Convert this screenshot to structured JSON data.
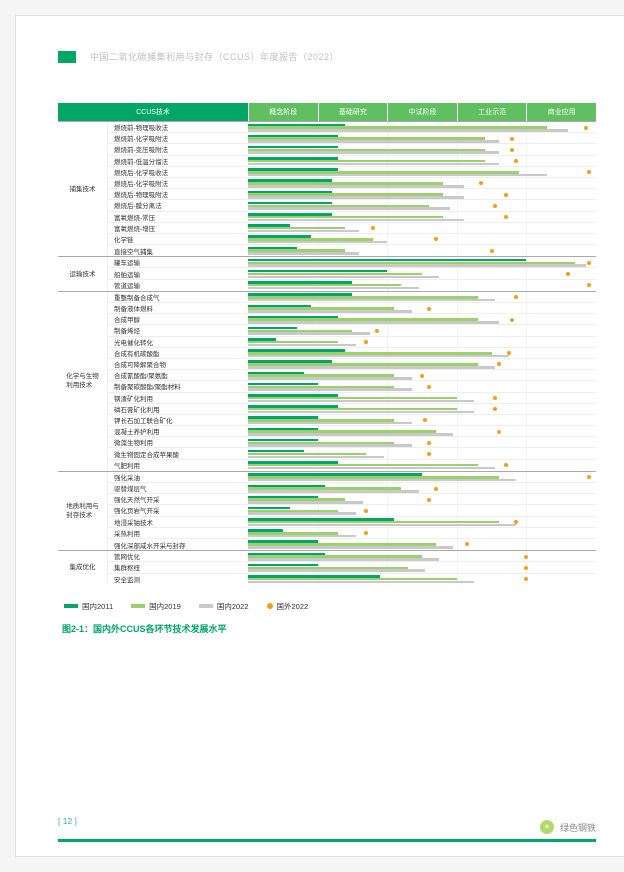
{
  "header": "中国二氧化碳捕集利用与封存（CCUS）年度报告（2022）",
  "columns": {
    "tech": "CCUS技术",
    "stages": [
      "概念阶段",
      "基础研究",
      "中试阶段",
      "工业示范",
      "商业应用"
    ]
  },
  "scale": 5,
  "groups": [
    {
      "name": "捕集技术",
      "rows": [
        {
          "n": "燃烧前-物理吸收法",
          "a": 1.4,
          "b": 4.3,
          "c": 4.6,
          "d": 4.85
        },
        {
          "n": "燃烧前-化学吸附法",
          "a": 1.3,
          "b": 3.4,
          "c": 3.6,
          "d": 3.8
        },
        {
          "n": "燃烧前-变压吸附法",
          "a": 1.3,
          "b": 3.4,
          "c": 3.6,
          "d": 3.8
        },
        {
          "n": "燃烧前-低温分馏法",
          "a": 1.3,
          "b": 3.4,
          "c": 3.6,
          "d": 3.85
        },
        {
          "n": "燃烧后-化学吸收法",
          "a": 1.3,
          "b": 3.9,
          "c": 4.3,
          "d": 4.9
        },
        {
          "n": "燃烧后-化学吸附法",
          "a": 1.2,
          "b": 2.8,
          "c": 3.1,
          "d": 3.35
        },
        {
          "n": "燃烧后-物理吸附法",
          "a": 1.2,
          "b": 2.8,
          "c": 3.1,
          "d": 3.7
        },
        {
          "n": "燃烧后-膜分离法",
          "a": 1.2,
          "b": 2.6,
          "c": 2.9,
          "d": 3.55
        },
        {
          "n": "富氧燃烧-常压",
          "a": 1.2,
          "b": 2.8,
          "c": 3.1,
          "d": 3.7
        },
        {
          "n": "富氧燃烧-增压",
          "a": 0.6,
          "b": 1.4,
          "c": 1.6,
          "d": 1.8
        },
        {
          "n": "化学链",
          "a": 0.9,
          "b": 1.8,
          "c": 2.0,
          "d": 2.7
        },
        {
          "n": "直接空气捕集",
          "a": 0.7,
          "b": 1.4,
          "c": 1.6,
          "d": 3.5
        }
      ]
    },
    {
      "name": "运输技术",
      "rows": [
        {
          "n": "罐车运输",
          "a": 4.0,
          "b": 4.7,
          "c": 4.85,
          "d": 4.9
        },
        {
          "n": "船舶运输",
          "a": 2.0,
          "b": 2.5,
          "c": 2.75,
          "d": 4.6
        },
        {
          "n": "管道运输",
          "a": 1.5,
          "b": 2.2,
          "c": 2.45,
          "d": 4.9
        }
      ]
    },
    {
      "name": "化学与生物\n利用技术",
      "rows": [
        {
          "n": "重整制备合成气",
          "a": 1.5,
          "b": 3.3,
          "c": 3.55,
          "d": 3.85
        },
        {
          "n": "制备液体燃料",
          "a": 0.9,
          "b": 2.1,
          "c": 2.35,
          "d": 2.6
        },
        {
          "n": "合成甲醇",
          "a": 1.3,
          "b": 3.3,
          "c": 3.6,
          "d": 3.8
        },
        {
          "n": "制备烯烃",
          "a": 0.7,
          "b": 1.5,
          "c": 1.75,
          "d": 1.85
        },
        {
          "n": "光电催化转化",
          "a": 0.4,
          "b": 1.3,
          "c": 1.55,
          "d": 1.7
        },
        {
          "n": "合成有机碳酸酯",
          "a": 1.4,
          "b": 3.5,
          "c": 3.75,
          "d": 3.75
        },
        {
          "n": "合成可降解聚合物",
          "a": 1.2,
          "b": 3.3,
          "c": 3.55,
          "d": 3.6
        },
        {
          "n": "合成氰酸酯/聚氨酯",
          "a": 0.8,
          "b": 2.1,
          "c": 2.35,
          "d": 2.5
        },
        {
          "n": "制备聚碳酸酯/聚酯材料",
          "a": 1.0,
          "b": 2.1,
          "c": 2.35,
          "d": 2.6
        },
        {
          "n": "钢渣矿化利用",
          "a": 1.3,
          "b": 3.0,
          "c": 3.25,
          "d": 3.55
        },
        {
          "n": "磷石膏矿化利用",
          "a": 1.3,
          "b": 3.0,
          "c": 3.25,
          "d": 3.55
        },
        {
          "n": "钾长石加工联合矿化",
          "a": 1.0,
          "b": 2.1,
          "c": 2.35,
          "d": 2.55
        },
        {
          "n": "混凝土养护利用",
          "a": 1.0,
          "b": 2.7,
          "c": 2.95,
          "d": 3.6
        },
        {
          "n": "微藻生物利用",
          "a": 1.0,
          "b": 2.1,
          "c": 2.35,
          "d": 2.6
        },
        {
          "n": "微生物固定合成苹果酸",
          "a": 0.8,
          "b": 1.7,
          "c": 1.95,
          "d": 2.6
        },
        {
          "n": "气肥利用",
          "a": 1.3,
          "b": 3.3,
          "c": 3.55,
          "d": 3.7
        }
      ]
    },
    {
      "name": "地质利用与\n封存技术",
      "rows": [
        {
          "n": "强化采油",
          "a": 2.5,
          "b": 3.6,
          "c": 3.85,
          "d": 4.9
        },
        {
          "n": "驱替煤层气",
          "a": 1.1,
          "b": 2.2,
          "c": 2.45,
          "d": 2.7
        },
        {
          "n": "强化天然气开采",
          "a": 1.0,
          "b": 1.4,
          "c": 1.65,
          "d": 2.6
        },
        {
          "n": "强化页岩气开采",
          "a": 0.6,
          "b": 1.3,
          "c": 1.55,
          "d": 1.7
        },
        {
          "n": "地浸采铀技术",
          "a": 2.1,
          "b": 3.6,
          "c": 3.85,
          "d": 3.85
        },
        {
          "n": "采热利用",
          "a": 0.5,
          "b": 1.3,
          "c": 1.55,
          "d": 1.7
        },
        {
          "n": "强化深部咸水开采与封存",
          "a": 1.0,
          "b": 2.7,
          "c": 2.95,
          "d": 3.15
        }
      ]
    },
    {
      "name": "集成优化",
      "rows": [
        {
          "n": "管网优化",
          "a": 1.1,
          "b": 2.5,
          "c": 2.75,
          "d": 4.0
        },
        {
          "n": "集群枢纽",
          "a": 1.0,
          "b": 2.3,
          "c": 2.55,
          "d": 4.0
        },
        {
          "n": "安全监测",
          "a": 1.9,
          "b": 3.0,
          "c": 3.25,
          "d": 4.0
        }
      ]
    }
  ],
  "legend": {
    "a": "国内2011",
    "b": "国内2019",
    "c": "国内2022",
    "d": "国外2022"
  },
  "caption": "图2-1：国内外CCUS各环节技术发展水平",
  "page": "[ 12 ]",
  "watermark": "绿色钢铁"
}
